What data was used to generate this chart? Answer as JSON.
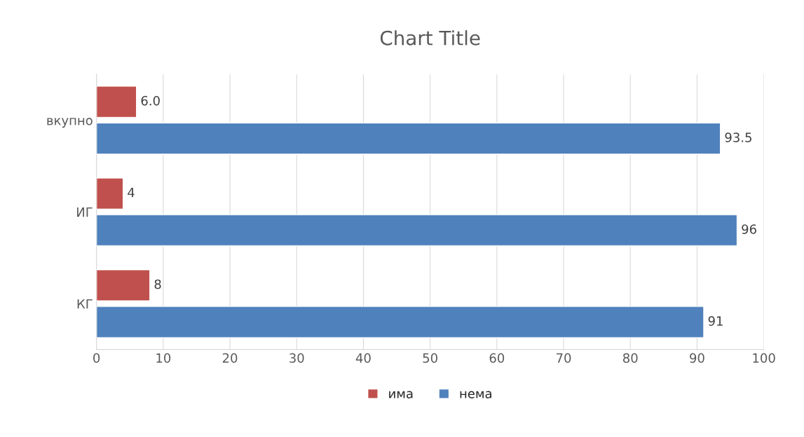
{
  "chart_data": {
    "type": "bar",
    "orientation": "horizontal",
    "title": "Chart Title",
    "categories": [
      "вкупно",
      "ИГ",
      "КГ"
    ],
    "series": [
      {
        "name": "има",
        "color": "#c0504d",
        "values": [
          6.0,
          4,
          8
        ],
        "value_labels": [
          "6.0",
          "4",
          "8"
        ]
      },
      {
        "name": "нема",
        "color": "#4f81bd",
        "values": [
          93.5,
          96,
          91
        ],
        "value_labels": [
          "93.5",
          "96",
          "91"
        ]
      }
    ],
    "xlim": [
      0,
      100
    ],
    "xticks": [
      0,
      10,
      20,
      30,
      40,
      50,
      60,
      70,
      80,
      90,
      100
    ],
    "grid": "x",
    "legend": "bottom"
  }
}
